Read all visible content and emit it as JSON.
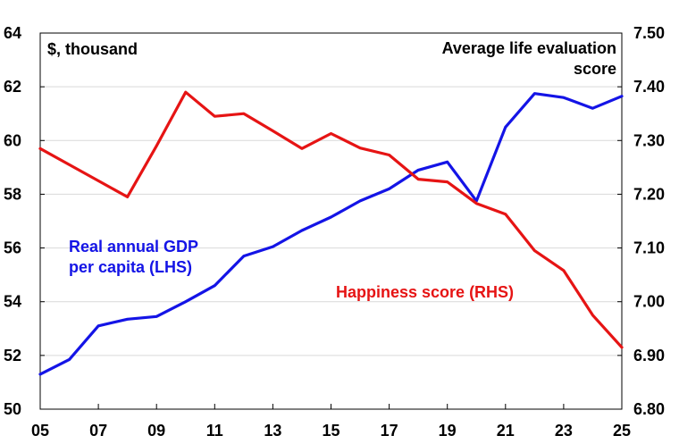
{
  "chart_data": {
    "type": "line",
    "x_tick_labels": [
      "05",
      "07",
      "09",
      "11",
      "13",
      "15",
      "17",
      "19",
      "21",
      "23",
      "25"
    ],
    "x_ticks": [
      2005,
      2007,
      2009,
      2011,
      2013,
      2015,
      2017,
      2019,
      2021,
      2023,
      2025
    ],
    "xlim": [
      2005,
      2025
    ],
    "left_axis": {
      "label": "$, thousand",
      "ylim": [
        50,
        64
      ],
      "ticks": [
        50,
        52,
        54,
        56,
        58,
        60,
        62,
        64
      ],
      "tick_labels": [
        "50",
        "52",
        "54",
        "56",
        "58",
        "60",
        "62",
        "64"
      ]
    },
    "right_axis": {
      "label_lines": [
        "Average life evaluation",
        "score"
      ],
      "ylim": [
        6.8,
        7.5
      ],
      "ticks": [
        6.8,
        6.9,
        7.0,
        7.1,
        7.2,
        7.3,
        7.4,
        7.5
      ],
      "tick_labels": [
        "6.80",
        "6.90",
        "7.00",
        "7.10",
        "7.20",
        "7.30",
        "7.40",
        "7.50"
      ]
    },
    "series": [
      {
        "name_lines": [
          "Real annual GDP",
          "per capita (LHS)"
        ],
        "axis": "left",
        "color": "#1414e6",
        "x": [
          2005,
          2006,
          2007,
          2008,
          2009,
          2010,
          2011,
          2012,
          2013,
          2014,
          2015,
          2016,
          2017,
          2018,
          2019,
          2020,
          2021,
          2022,
          2023,
          2024,
          2025
        ],
        "values": [
          51.3,
          51.85,
          53.1,
          53.35,
          53.45,
          54.0,
          54.6,
          55.7,
          56.05,
          56.65,
          57.15,
          57.75,
          58.2,
          58.9,
          59.2,
          57.75,
          60.5,
          61.75,
          61.6,
          61.2,
          61.65
        ]
      },
      {
        "name_lines": [
          "Happiness score (RHS)"
        ],
        "axis": "right",
        "color": "#e61414",
        "x": [
          2005,
          2006,
          2007,
          2008,
          2009,
          2010,
          2011,
          2012,
          2013,
          2014,
          2015,
          2016,
          2017,
          2018,
          2019,
          2020,
          2021,
          2022,
          2023,
          2024,
          2025
        ],
        "values": [
          7.285,
          7.255,
          7.225,
          7.195,
          7.29,
          7.39,
          7.345,
          7.35,
          7.318,
          7.285,
          7.313,
          7.286,
          7.273,
          7.228,
          7.223,
          7.183,
          7.163,
          7.095,
          7.058,
          6.975,
          6.915
        ]
      }
    ]
  }
}
